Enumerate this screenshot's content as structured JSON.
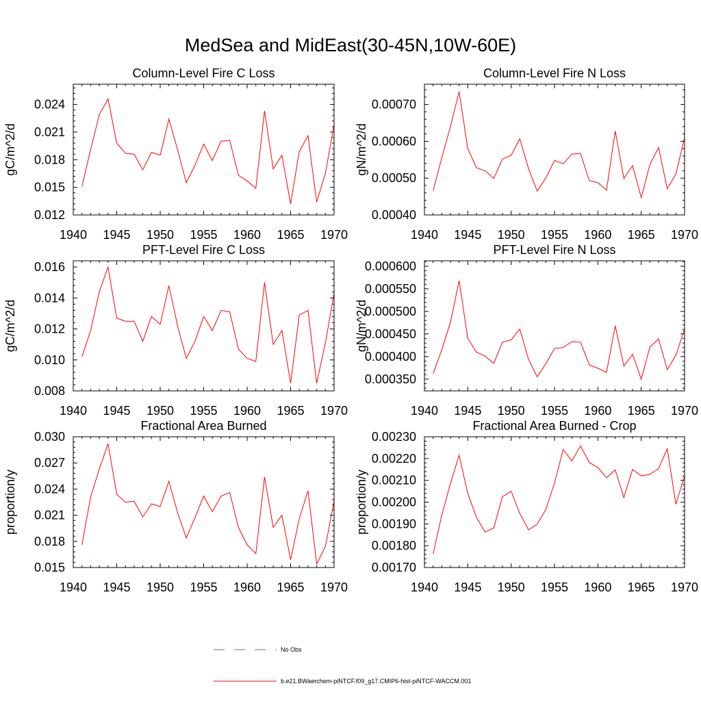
{
  "page": {
    "title": "MedSea and MidEast(30-45N,10W-60E)"
  },
  "colors": {
    "series": "#ff0000",
    "noobs": "#6a6ab0",
    "axis": "#000000"
  },
  "legend": {
    "placement": "bottom-center",
    "items": [
      {
        "label": "No Obs",
        "style": "dashed",
        "color": "#6a6ab0"
      },
      {
        "label": "b.e21.BWaerchem-piNTCF.f09_g17.CMIP6-hist-piNTCF-WACCM.001",
        "style": "solid",
        "color": "#ff0000"
      }
    ]
  },
  "chart_data": [
    {
      "type": "line",
      "title": "Column-Level Fire C Loss",
      "ylabel": "gC/m^2/d",
      "xlim": [
        1940,
        1970
      ],
      "ylim": [
        0.012,
        0.0262
      ],
      "xticks": [
        "1940",
        "1945",
        "1950",
        "1955",
        "1960",
        "1965",
        "1970"
      ],
      "yticks": [
        "0.012",
        "0.015",
        "0.018",
        "0.021",
        "0.024"
      ],
      "x": [
        1941,
        1942,
        1943,
        1944,
        1945,
        1946,
        1947,
        1948,
        1949,
        1950,
        1951,
        1952,
        1953,
        1954,
        1955,
        1956,
        1957,
        1958,
        1959,
        1960,
        1961,
        1962,
        1963,
        1964,
        1965,
        1966,
        1967,
        1968,
        1969,
        1970
      ],
      "series": [
        {
          "values": [
            0.0151,
            0.0191,
            0.0229,
            0.0246,
            0.0198,
            0.0187,
            0.0186,
            0.0169,
            0.0188,
            0.0185,
            0.0224,
            0.0191,
            0.0155,
            0.0174,
            0.0197,
            0.0179,
            0.02,
            0.0201,
            0.0163,
            0.0157,
            0.0149,
            0.0233,
            0.017,
            0.0185,
            0.0132,
            0.0189,
            0.0206,
            0.0134,
            0.0165,
            0.0218
          ]
        }
      ]
    },
    {
      "type": "line",
      "title": "Column-Level Fire N Loss",
      "ylabel": "gN/m^2/d",
      "xlim": [
        1940,
        1970
      ],
      "ylim": [
        0.0004,
        0.000755
      ],
      "xticks": [
        "1940",
        "1945",
        "1950",
        "1955",
        "1960",
        "1965",
        "1970"
      ],
      "yticks": [
        "0.00040",
        "0.00050",
        "0.00060",
        "0.00070"
      ],
      "x": [
        1941,
        1942,
        1943,
        1944,
        1945,
        1946,
        1947,
        1948,
        1949,
        1950,
        1951,
        1952,
        1953,
        1954,
        1955,
        1956,
        1957,
        1958,
        1959,
        1960,
        1961,
        1962,
        1963,
        1964,
        1965,
        1966,
        1967,
        1968,
        1969,
        1970
      ],
      "series": [
        {
          "values": [
            0.000466,
            0.000555,
            0.00064,
            0.000735,
            0.00058,
            0.000528,
            0.00052,
            0.000499,
            0.000552,
            0.000562,
            0.000607,
            0.000526,
            0.000465,
            0.0005,
            0.000548,
            0.000539,
            0.000565,
            0.000567,
            0.000493,
            0.000488,
            0.000467,
            0.000628,
            0.000499,
            0.000534,
            0.000447,
            0.000537,
            0.000583,
            0.000471,
            0.000511,
            0.00061
          ]
        }
      ]
    },
    {
      "type": "line",
      "title": "PFT-Level Fire C Loss",
      "ylabel": "gC/m^2/d",
      "xlim": [
        1940,
        1970
      ],
      "ylim": [
        0.008,
        0.0164
      ],
      "xticks": [
        "1940",
        "1945",
        "1950",
        "1955",
        "1960",
        "1965",
        "1970"
      ],
      "yticks": [
        "0.008",
        "0.010",
        "0.012",
        "0.014",
        "0.016"
      ],
      "x": [
        1941,
        1942,
        1943,
        1944,
        1945,
        1946,
        1947,
        1948,
        1949,
        1950,
        1951,
        1952,
        1953,
        1954,
        1955,
        1956,
        1957,
        1958,
        1959,
        1960,
        1961,
        1962,
        1963,
        1964,
        1965,
        1966,
        1967,
        1968,
        1969,
        1970
      ],
      "series": [
        {
          "values": [
            0.0102,
            0.0119,
            0.0144,
            0.016,
            0.0127,
            0.0125,
            0.0125,
            0.0112,
            0.0128,
            0.0123,
            0.0148,
            0.0122,
            0.0101,
            0.0112,
            0.0128,
            0.0119,
            0.0132,
            0.0131,
            0.0107,
            0.0101,
            0.0099,
            0.015,
            0.011,
            0.0119,
            0.0085,
            0.0129,
            0.0132,
            0.0085,
            0.0111,
            0.0143
          ]
        }
      ]
    },
    {
      "type": "line",
      "title": "PFT-Level Fire N Loss",
      "ylabel": "gN/m^2/d",
      "xlim": [
        1940,
        1970
      ],
      "ylim": [
        0.000324,
        0.000612
      ],
      "xticks": [
        "1940",
        "1945",
        "1950",
        "1955",
        "1960",
        "1965",
        "1970"
      ],
      "yticks": [
        "0.000350",
        "0.000400",
        "0.000450",
        "0.000500",
        "0.000550",
        "0.000600"
      ],
      "x": [
        1941,
        1942,
        1943,
        1944,
        1945,
        1946,
        1947,
        1948,
        1949,
        1950,
        1951,
        1952,
        1953,
        1954,
        1955,
        1956,
        1957,
        1958,
        1959,
        1960,
        1961,
        1962,
        1963,
        1964,
        1965,
        1966,
        1967,
        1968,
        1969,
        1970
      ],
      "series": [
        {
          "values": [
            0.000362,
            0.000415,
            0.000476,
            0.000568,
            0.00044,
            0.00041,
            0.000401,
            0.000385,
            0.000432,
            0.000437,
            0.000461,
            0.000394,
            0.000355,
            0.000384,
            0.000418,
            0.00042,
            0.000433,
            0.000432,
            0.000382,
            0.000374,
            0.000365,
            0.000468,
            0.000379,
            0.000405,
            0.00035,
            0.000421,
            0.000439,
            0.000371,
            0.000403,
            0.000461
          ]
        }
      ]
    },
    {
      "type": "line",
      "title": "Fractional Area Burned",
      "ylabel": "proportion/y",
      "xlim": [
        1940,
        1970
      ],
      "ylim": [
        0.015,
        0.03
      ],
      "xticks": [
        "1940",
        "1945",
        "1950",
        "1955",
        "1960",
        "1965",
        "1970"
      ],
      "yticks": [
        "0.015",
        "0.018",
        "0.021",
        "0.024",
        "0.027",
        "0.030"
      ],
      "x": [
        1941,
        1942,
        1943,
        1944,
        1945,
        1946,
        1947,
        1948,
        1949,
        1950,
        1951,
        1952,
        1953,
        1954,
        1955,
        1956,
        1957,
        1958,
        1959,
        1960,
        1961,
        1962,
        1963,
        1964,
        1965,
        1966,
        1967,
        1968,
        1969,
        1970
      ],
      "series": [
        {
          "values": [
            0.0176,
            0.0231,
            0.0263,
            0.0292,
            0.0234,
            0.0225,
            0.0226,
            0.0208,
            0.0223,
            0.022,
            0.0249,
            0.0213,
            0.0184,
            0.0207,
            0.0232,
            0.0214,
            0.0232,
            0.0236,
            0.0196,
            0.0176,
            0.0166,
            0.0254,
            0.0196,
            0.021,
            0.0159,
            0.0206,
            0.0238,
            0.0154,
            0.0174,
            0.0226
          ]
        }
      ]
    },
    {
      "type": "line",
      "title": "Fractional Area Burned - Crop",
      "ylabel": "proportion/y",
      "xlim": [
        1940,
        1970
      ],
      "ylim": [
        0.0017,
        0.0023
      ],
      "xticks": [
        "1940",
        "1945",
        "1950",
        "1955",
        "1960",
        "1965",
        "1970"
      ],
      "yticks": [
        "0.00170",
        "0.00180",
        "0.00190",
        "0.00200",
        "0.00210",
        "0.00220",
        "0.00230"
      ],
      "x": [
        1941,
        1942,
        1943,
        1944,
        1945,
        1946,
        1947,
        1948,
        1949,
        1950,
        1951,
        1952,
        1953,
        1954,
        1955,
        1956,
        1957,
        1958,
        1959,
        1960,
        1961,
        1962,
        1963,
        1964,
        1965,
        1966,
        1967,
        1968,
        1969,
        1970
      ],
      "series": [
        {
          "values": [
            0.001762,
            0.00194,
            0.002085,
            0.002215,
            0.00204,
            0.00193,
            0.001862,
            0.001882,
            0.002025,
            0.00205,
            0.001948,
            0.001873,
            0.001899,
            0.001966,
            0.002088,
            0.002242,
            0.002189,
            0.002258,
            0.002182,
            0.002159,
            0.002112,
            0.002148,
            0.002021,
            0.00215,
            0.00212,
            0.002128,
            0.002154,
            0.002245,
            0.001991,
            0.00212
          ]
        }
      ]
    }
  ]
}
